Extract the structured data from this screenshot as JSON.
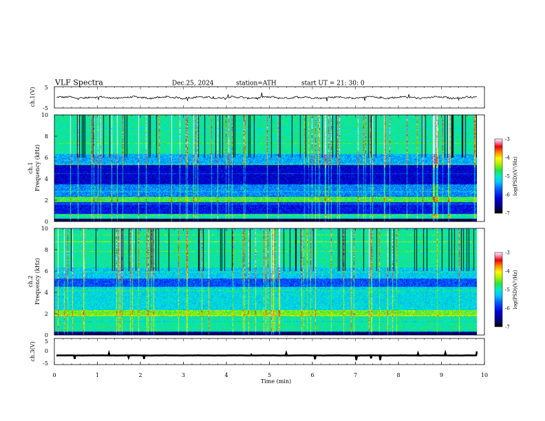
{
  "header": {
    "title": "VLF  Spectra",
    "date": "Dec.25, 2024",
    "station": "station=ATH",
    "start": "start  UT  =    21: 30: 0"
  },
  "chart_data": [
    {
      "type": "line",
      "ylabel": "ch.1(V)",
      "ylim": [
        -5,
        5
      ],
      "yticks": [
        "5",
        "-5"
      ],
      "xlim": [
        0,
        10
      ],
      "series_level": -0.1,
      "series_amplitude": 0.8
    },
    {
      "type": "heatmap",
      "ylabel_channel": "ch.1",
      "ylabel": "Frequency  (kHz)",
      "ylim": [
        0,
        10
      ],
      "yticks": [
        "10",
        "8",
        "6",
        "4",
        "2",
        "0"
      ],
      "xlim": [
        0,
        9.8
      ],
      "colorbar": {
        "label": "log(PSD)(V²/Hz)",
        "ticks": [
          "-3",
          "-4",
          "-5",
          "-6",
          "-7"
        ],
        "range": [
          -7,
          -3
        ]
      }
    },
    {
      "type": "heatmap",
      "ylabel_channel": "ch.2",
      "ylabel": "Frequency  (kHz)",
      "ylim": [
        0,
        10
      ],
      "yticks": [
        "10",
        "8",
        "6",
        "4",
        "2",
        "0"
      ],
      "xlim": [
        0,
        9.8
      ],
      "colorbar": {
        "label": "log(PSD)(V²/Hz)",
        "ticks": [
          "-3",
          "-4",
          "-5",
          "-6",
          "-7"
        ],
        "range": [
          -7,
          -3
        ]
      }
    },
    {
      "type": "line",
      "ylabel": "ch.3(V)",
      "ylim": [
        -5,
        5
      ],
      "yticks": [
        "5",
        "0",
        "-5"
      ],
      "xlim": [
        0,
        10
      ],
      "series_level": -1.5,
      "xlabel": "Time  (min)",
      "xticks": [
        "0",
        "1",
        "2",
        "3",
        "4",
        "5",
        "6",
        "7",
        "8",
        "9",
        "10"
      ]
    }
  ],
  "colors": {
    "background": "#ffffff",
    "axis": "#000000",
    "trace": "#000000"
  }
}
